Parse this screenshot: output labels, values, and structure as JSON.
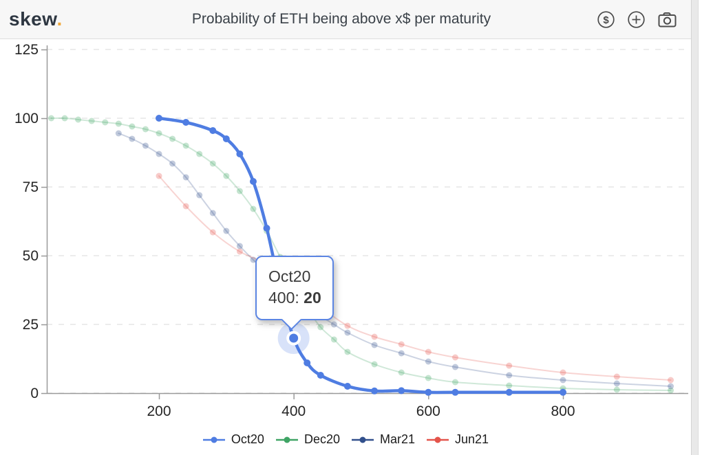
{
  "header": {
    "logo_text": "skew",
    "logo_dot": ".",
    "title": "Probability of ETH being above x$ per maturity",
    "icons": [
      {
        "name": "currency-icon",
        "label": "$"
      },
      {
        "name": "add-icon",
        "label": "+"
      },
      {
        "name": "camera-icon",
        "label": ""
      }
    ]
  },
  "tooltip": {
    "series": "Oct20",
    "label": "400:",
    "value": "20",
    "border_color": "#5b85e3"
  },
  "chart_data": {
    "type": "line",
    "title": "Probability of ETH being above x$ per maturity",
    "xlabel": "",
    "ylabel": "",
    "x_ticks": [
      200,
      400,
      600,
      800
    ],
    "y_ticks": [
      0,
      25,
      50,
      75,
      100,
      125
    ],
    "xlim": [
      33,
      994
    ],
    "ylim": [
      0,
      125
    ],
    "grid": "horizontal-dashed",
    "legend_position": "bottom",
    "series": [
      {
        "name": "Dec20",
        "color": "#3fa465",
        "focused": false,
        "points": [
          [
            40,
            100
          ],
          [
            60,
            100
          ],
          [
            80,
            99.5
          ],
          [
            100,
            99
          ],
          [
            120,
            98.5
          ],
          [
            140,
            98
          ],
          [
            160,
            97
          ],
          [
            180,
            96
          ],
          [
            200,
            94.5
          ],
          [
            220,
            92.5
          ],
          [
            240,
            90
          ],
          [
            260,
            87
          ],
          [
            280,
            83.5
          ],
          [
            300,
            79
          ],
          [
            320,
            73.5
          ],
          [
            340,
            67
          ],
          [
            360,
            59
          ],
          [
            380,
            49.5
          ],
          [
            400,
            40
          ],
          [
            420,
            31
          ],
          [
            440,
            24
          ],
          [
            460,
            19.5
          ],
          [
            480,
            15
          ],
          [
            520,
            10.5
          ],
          [
            560,
            7.5
          ],
          [
            600,
            5.5
          ],
          [
            640,
            4
          ],
          [
            720,
            2.75
          ],
          [
            800,
            1.75
          ],
          [
            880,
            1.25
          ],
          [
            960,
            1
          ]
        ]
      },
      {
        "name": "Mar21",
        "color": "#32508c",
        "focused": false,
        "points": [
          [
            140,
            94.5
          ],
          [
            160,
            92.5
          ],
          [
            180,
            90
          ],
          [
            200,
            87
          ],
          [
            220,
            83.5
          ],
          [
            240,
            78.5
          ],
          [
            260,
            72
          ],
          [
            280,
            65.5
          ],
          [
            300,
            59
          ],
          [
            320,
            53.5
          ],
          [
            340,
            48.5
          ],
          [
            360,
            44
          ],
          [
            380,
            39.5
          ],
          [
            400,
            35.5
          ],
          [
            420,
            31.5
          ],
          [
            440,
            28
          ],
          [
            460,
            25
          ],
          [
            480,
            22
          ],
          [
            520,
            17.5
          ],
          [
            560,
            14.5
          ],
          [
            600,
            11.5
          ],
          [
            640,
            9.5
          ],
          [
            720,
            6.5
          ],
          [
            800,
            4.75
          ],
          [
            880,
            3.5
          ],
          [
            960,
            2.5
          ]
        ]
      },
      {
        "name": "Jun21",
        "color": "#e4544b",
        "focused": false,
        "points": [
          [
            200,
            79
          ],
          [
            240,
            68
          ],
          [
            280,
            58.5
          ],
          [
            320,
            51.5
          ],
          [
            360,
            47
          ],
          [
            400,
            40.5
          ],
          [
            440,
            31.5
          ],
          [
            480,
            24.5
          ],
          [
            520,
            20.5
          ],
          [
            560,
            17.75
          ],
          [
            600,
            15
          ],
          [
            640,
            13
          ],
          [
            720,
            10
          ],
          [
            800,
            7.5
          ],
          [
            880,
            6
          ],
          [
            960,
            4.75
          ]
        ]
      },
      {
        "name": "Oct20",
        "color": "#4f7de2",
        "focused": true,
        "points": [
          [
            200,
            100
          ],
          [
            240,
            98.5
          ],
          [
            280,
            95.5
          ],
          [
            300,
            92.5
          ],
          [
            320,
            87
          ],
          [
            340,
            77
          ],
          [
            360,
            60
          ],
          [
            380,
            38
          ],
          [
            400,
            20
          ],
          [
            420,
            11
          ],
          [
            440,
            6.5
          ],
          [
            480,
            2.5
          ],
          [
            520,
            0.8
          ],
          [
            560,
            0.9
          ],
          [
            600,
            0.3
          ],
          [
            640,
            0.3
          ],
          [
            720,
            0.3
          ],
          [
            800,
            0.3
          ]
        ]
      }
    ],
    "legend_order": [
      "Oct20",
      "Dec20",
      "Mar21",
      "Jun21"
    ],
    "highlight": {
      "series": "Oct20",
      "x": 400,
      "y": 20
    }
  }
}
